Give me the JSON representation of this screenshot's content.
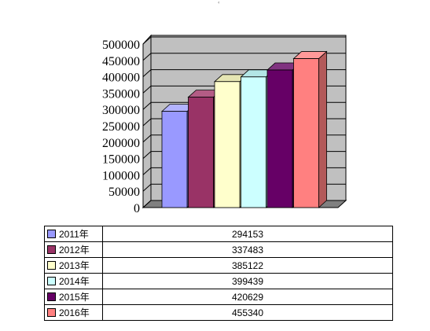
{
  "chart_data": {
    "type": "bar",
    "categories": [
      "2011年",
      "2012年",
      "2013年",
      "2014年",
      "2015年",
      "2016年"
    ],
    "values": [
      294153,
      337483,
      385122,
      399439,
      420629,
      455340
    ],
    "ylim": [
      0,
      500000
    ],
    "y_ticks": [
      "500000",
      "450000",
      "400000",
      "350000",
      "300000",
      "250000",
      "200000",
      "150000",
      "100000",
      "50000",
      "0"
    ],
    "grid": true,
    "legend": "data table below chart",
    "colors": [
      "#9999ff",
      "#993366",
      "#ffffcc",
      "#ccffff",
      "#660066",
      "#ff8080"
    ],
    "side_colors": [
      "#6666cc",
      "#6b2447",
      "#cccc99",
      "#99cccc",
      "#440044",
      "#b35959"
    ],
    "top_colors": [
      "#b3b3ff",
      "#b35c85",
      "#e6e6b3",
      "#b3e6e6",
      "#803380",
      "#ff9999"
    ],
    "wall_color": "#c0c0c0",
    "floor_color": "#808080"
  }
}
